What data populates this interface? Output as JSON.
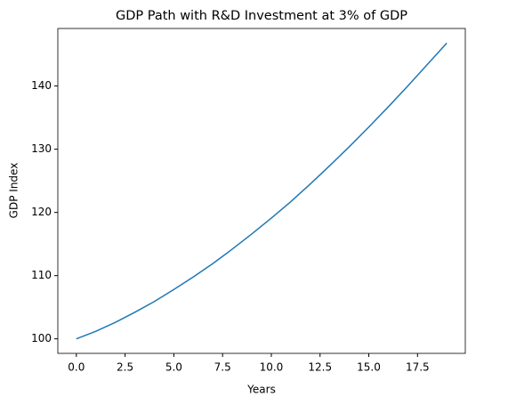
{
  "chart_data": {
    "type": "line",
    "title": "GDP Path with R&D Investment at 3% of GDP",
    "x_label": "Years",
    "y_label": "GDP Index",
    "x": [
      0,
      1,
      2,
      3,
      4,
      5,
      6,
      7,
      8,
      9,
      10,
      11,
      12,
      13,
      14,
      15,
      16,
      17,
      18,
      19
    ],
    "values": [
      100,
      101.2,
      102.6,
      104.2,
      105.9,
      107.8,
      109.8,
      111.9,
      114.2,
      116.6,
      119.1,
      121.7,
      124.5,
      127.4,
      130.4,
      133.5,
      136.7,
      140.0,
      143.4,
      146.8
    ],
    "color": "#1f77b4",
    "xlim": [
      -0.95,
      19.95
    ],
    "xticks": [
      {
        "value": 0,
        "label": "0.0"
      },
      {
        "value": 2.5,
        "label": "2.5"
      },
      {
        "value": 5,
        "label": "5.0"
      },
      {
        "value": 7.5,
        "label": "7.5"
      },
      {
        "value": 10,
        "label": "10.0"
      },
      {
        "value": 12.5,
        "label": "12.5"
      },
      {
        "value": 15,
        "label": "15.0"
      },
      {
        "value": 17.5,
        "label": "17.5"
      }
    ],
    "ylim": [
      97.7,
      149.1
    ],
    "yticks": [
      100,
      110,
      120,
      130,
      140
    ],
    "grid": false
  }
}
